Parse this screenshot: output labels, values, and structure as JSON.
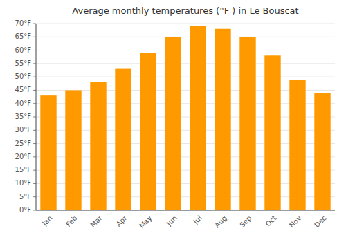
{
  "chart_data": {
    "type": "bar",
    "title": "Average monthly temperatures (°F ) in Le Bouscat",
    "categories": [
      "Jan",
      "Feb",
      "Mar",
      "Apr",
      "May",
      "Jun",
      "Jul",
      "Aug",
      "Sep",
      "Oct",
      "Nov",
      "Dec"
    ],
    "values": [
      43,
      45,
      48,
      53,
      59,
      65,
      69,
      68,
      65,
      58,
      49,
      44
    ],
    "color": "#FF9900",
    "ylim": [
      0,
      70
    ],
    "yticks": [
      {
        "value": 0,
        "label": "0°F"
      },
      {
        "value": 5,
        "label": "5°F"
      },
      {
        "value": 10,
        "label": "10°F"
      },
      {
        "value": 15,
        "label": "15°F"
      },
      {
        "value": 20,
        "label": "20°F"
      },
      {
        "value": 25,
        "label": "25°F"
      },
      {
        "value": 30,
        "label": "30°F"
      },
      {
        "value": 35,
        "label": "35°F"
      },
      {
        "value": 40,
        "label": "40°F"
      },
      {
        "value": 45,
        "label": "45°F"
      },
      {
        "value": 50,
        "label": "50°F"
      },
      {
        "value": 55,
        "label": "55°F"
      },
      {
        "value": 60,
        "label": "60°F"
      },
      {
        "value": 65,
        "label": "65°F"
      },
      {
        "value": 70,
        "label": "70°F"
      }
    ],
    "grid": true
  }
}
